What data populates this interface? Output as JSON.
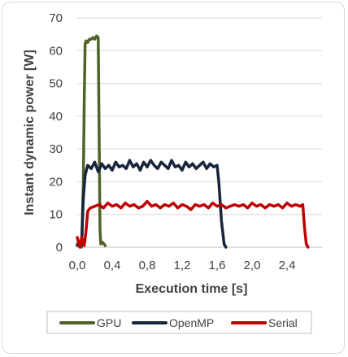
{
  "chart_data": {
    "type": "line",
    "title": "",
    "xlabel": "Execution time [s]",
    "ylabel": "Instant dynamic power [W]",
    "xlim": [
      0,
      2.8
    ],
    "ylim": [
      0,
      70
    ],
    "x_ticks": [
      0.0,
      0.4,
      0.8,
      1.2,
      1.6,
      2.0,
      2.4
    ],
    "x_tick_labels": [
      "0,0",
      "0,4",
      "0,8",
      "1,2",
      "1,6",
      "2,0",
      "2,4"
    ],
    "y_ticks": [
      0,
      10,
      20,
      30,
      40,
      50,
      60,
      70
    ],
    "y_tick_labels": [
      "0",
      "10",
      "20",
      "30",
      "40",
      "50",
      "60",
      "70"
    ],
    "grid": "horizontal",
    "legend_position": "bottom",
    "series": [
      {
        "name": "GPU",
        "color": "#4f6228",
        "x": [
          0.0,
          0.03,
          0.05,
          0.07,
          0.08,
          0.09,
          0.1,
          0.12,
          0.14,
          0.16,
          0.18,
          0.2,
          0.22,
          0.24,
          0.25,
          0.26,
          0.27,
          0.29,
          0.32
        ],
        "y": [
          1,
          0.5,
          0,
          20,
          45,
          62,
          63,
          62.5,
          63.5,
          63.5,
          64,
          63.5,
          64.5,
          64,
          35,
          5,
          1,
          1.5,
          0.5
        ]
      },
      {
        "name": "OpenMP",
        "color": "#17263c",
        "x": [
          0.0,
          0.03,
          0.05,
          0.07,
          0.09,
          0.12,
          0.16,
          0.2,
          0.24,
          0.28,
          0.32,
          0.36,
          0.4,
          0.44,
          0.48,
          0.52,
          0.56,
          0.6,
          0.64,
          0.68,
          0.72,
          0.76,
          0.8,
          0.84,
          0.88,
          0.92,
          0.96,
          1.0,
          1.04,
          1.08,
          1.12,
          1.16,
          1.2,
          1.24,
          1.28,
          1.32,
          1.36,
          1.4,
          1.44,
          1.48,
          1.52,
          1.56,
          1.6,
          1.62,
          1.65,
          1.68,
          1.7
        ],
        "y": [
          0.5,
          1,
          1,
          15,
          22,
          25,
          24,
          26,
          23,
          25.5,
          24,
          25,
          23.5,
          26,
          24.5,
          25,
          24,
          26.5,
          24.5,
          25.5,
          23.5,
          26,
          24.5,
          26.5,
          25,
          24,
          26,
          25,
          24,
          26.5,
          24.5,
          25,
          23.5,
          26,
          24.5,
          25.5,
          24,
          25,
          26,
          24,
          25.5,
          24.5,
          25,
          20,
          8,
          1,
          0
        ]
      },
      {
        "name": "Serial",
        "color": "#c00000",
        "x": [
          0.0,
          0.03,
          0.05,
          0.08,
          0.1,
          0.12,
          0.15,
          0.2,
          0.25,
          0.3,
          0.35,
          0.4,
          0.45,
          0.5,
          0.55,
          0.6,
          0.65,
          0.7,
          0.75,
          0.8,
          0.85,
          0.9,
          0.95,
          1.0,
          1.05,
          1.1,
          1.15,
          1.2,
          1.25,
          1.3,
          1.35,
          1.4,
          1.45,
          1.5,
          1.55,
          1.6,
          1.65,
          1.7,
          1.75,
          1.8,
          1.85,
          1.9,
          1.95,
          2.0,
          2.05,
          2.1,
          2.15,
          2.2,
          2.25,
          2.3,
          2.35,
          2.4,
          2.45,
          2.5,
          2.55,
          2.58,
          2.6,
          2.62,
          2.64
        ],
        "y": [
          3,
          0,
          3,
          0.5,
          5,
          11,
          12,
          12.5,
          13,
          12,
          13.5,
          12.5,
          13,
          12,
          13.5,
          12.5,
          13,
          12,
          12.5,
          14,
          12.5,
          13,
          12,
          13,
          12.5,
          13.5,
          12,
          13,
          12.5,
          11.5,
          13,
          12.5,
          13,
          12,
          13.5,
          12.5,
          13,
          12,
          12.5,
          13,
          12.5,
          13,
          12,
          13.5,
          12.5,
          13,
          12,
          13,
          12.5,
          13,
          12,
          13.5,
          12.5,
          13,
          12.5,
          13,
          6,
          1,
          0
        ]
      }
    ]
  }
}
